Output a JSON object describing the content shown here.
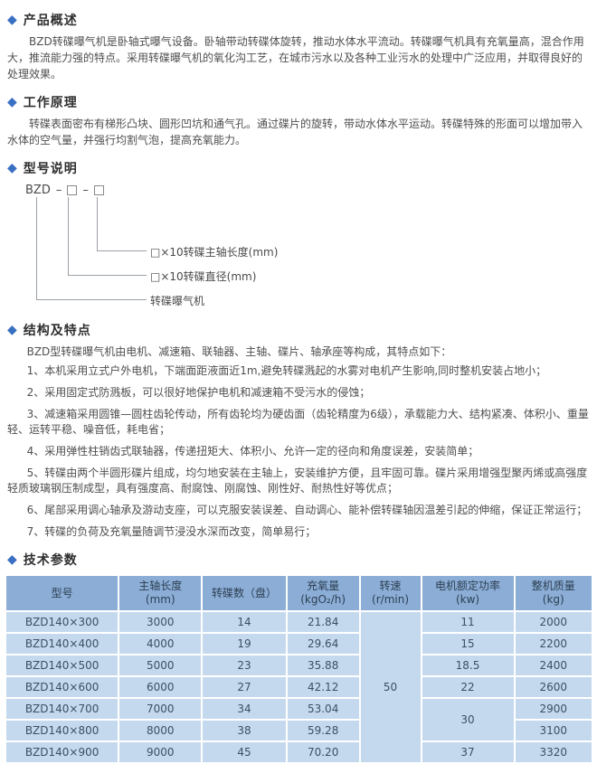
{
  "accent_color": "#3a70c2",
  "table_header_bg": "#8badd6",
  "table_row_bg": "#c5d9ee",
  "sections": {
    "overview": {
      "title": "产品概述",
      "body": "BZD转碟曝气机是卧轴式曝气设备。卧轴带动转碟体旋转，推动水体水平流动。转碟曝气机具有充氧量高，混合作用大，推流能力强的特点。采用转碟曝气机的氧化沟工艺，在城市污水以及各种工业污水的处理中广泛应用，并取得良好的处理效果。"
    },
    "principle": {
      "title": "工作原理",
      "body": "转碟表面密布有梯形凸块、圆形凹坑和通气孔。通过碟片的旋转，带动水体水平运动。转碟特殊的形面可以增加带入水体的空气量，并强行均割气泡，提高充氧能力。"
    },
    "model": {
      "title": "型号说明",
      "code_prefix": "BZD",
      "dash": "–",
      "labels": {
        "shaft": "□×10转碟主轴长度(mm)",
        "diameter": "□×10转碟直径(mm)",
        "name": "转碟曝气机"
      }
    },
    "features": {
      "title": "结构及特点",
      "intro": "BZD型转碟曝气机由电机、减速箱、联轴器、主轴、碟片、轴承座等构成，其特点如下：",
      "items": [
        "1、本机采用立式户外电机，下端面距液面近1m,避免转碟溅起的水雾对电机产生影响,同时整机安装占地小；",
        "2、采用固定式防溅板，可以很好地保护电机和减速箱不受污水的侵蚀；",
        "3、减速箱采用圆锥—圆柱齿轮传动，所有齿轮均为硬齿面（齿轮精度为6级），承载能力大、结构紧凑、体积小、重量轻、运转平稳、噪音低，耗电省；",
        "4、采用弹性柱销齿式联轴器，传递扭矩大、体积小、允许一定的径向和角度误差，安装简单；",
        "5、转碟由两个半圆形碟片组成，均匀地安装在主轴上，安装维护方便，且牢固可靠。碟片采用增强型聚丙烯或高强度轻质玻璃钢压制成型，具有强度高、耐腐蚀、刚腐蚀、刚性好、耐热性好等优点；",
        "6、尾部采用调心轴承及游动支座，可以克服安装误差、自动调心、能补偿转碟轴因温差引起的伸缩，保证正常运行；",
        "7、转碟的负荷及充氧量随调节浸没水深而改变，简单易行；"
      ]
    },
    "specs": {
      "title": "技术参数"
    }
  },
  "specs_table": {
    "col_widths": [
      "19.4%",
      "14.2%",
      "14.4%",
      "12.4%",
      "10.4%",
      "15.9%",
      "13.3%"
    ],
    "headers": [
      {
        "lines": [
          "型号"
        ]
      },
      {
        "lines": [
          "主轴长度",
          "(mm)"
        ]
      },
      {
        "lines": [
          "转碟数（盘）"
        ]
      },
      {
        "lines": [
          "充氧量",
          "(kgO₂/h)"
        ]
      },
      {
        "lines": [
          "转速",
          "(r/min)"
        ]
      },
      {
        "lines": [
          "电机额定功率",
          "(kw)"
        ]
      },
      {
        "lines": [
          "整机质量",
          "(kg)"
        ]
      }
    ],
    "rows": [
      [
        {
          "t": "BZD140×300"
        },
        {
          "t": "3000"
        },
        {
          "t": "14"
        },
        {
          "t": "21.84"
        },
        {
          "t": "50",
          "rs": 7
        },
        {
          "t": "11"
        },
        {
          "t": "2000"
        }
      ],
      [
        {
          "t": "BZD140×400"
        },
        {
          "t": "4000"
        },
        {
          "t": "19"
        },
        {
          "t": "29.64"
        },
        {
          "t": "15"
        },
        {
          "t": "2200"
        }
      ],
      [
        {
          "t": "BZD140×500"
        },
        {
          "t": "5000"
        },
        {
          "t": "23"
        },
        {
          "t": "35.88"
        },
        {
          "t": "18.5"
        },
        {
          "t": "2400"
        }
      ],
      [
        {
          "t": "BZD140×600"
        },
        {
          "t": "6000"
        },
        {
          "t": "27"
        },
        {
          "t": "42.12"
        },
        {
          "t": "22"
        },
        {
          "t": "2600"
        }
      ],
      [
        {
          "t": "BZD140×700"
        },
        {
          "t": "7000"
        },
        {
          "t": "34"
        },
        {
          "t": "53.04"
        },
        {
          "t": "30",
          "rs": 2
        },
        {
          "t": "2900"
        }
      ],
      [
        {
          "t": "BZD140×800"
        },
        {
          "t": "8000"
        },
        {
          "t": "38"
        },
        {
          "t": "59.28"
        },
        {
          "t": "3100"
        }
      ],
      [
        {
          "t": "BZD140×900"
        },
        {
          "t": "9000"
        },
        {
          "t": "45"
        },
        {
          "t": "70.20"
        },
        {
          "t": "37"
        },
        {
          "t": "3320"
        }
      ]
    ]
  }
}
